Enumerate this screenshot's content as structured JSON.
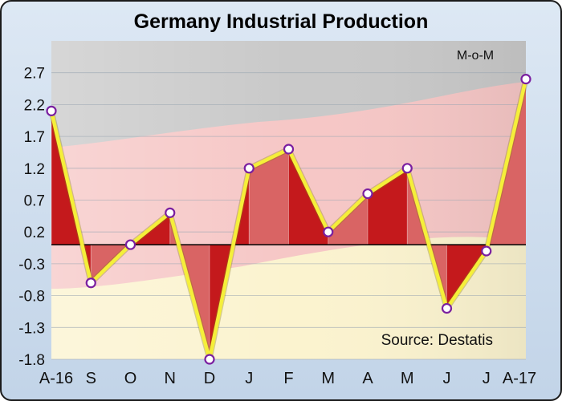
{
  "chart_data": {
    "type": "area",
    "title": "Germany Industrial Production",
    "subtitle": "M-o-M",
    "source": "Source: Destatis",
    "categories": [
      "A-16",
      "S",
      "O",
      "N",
      "D",
      "J",
      "F",
      "M",
      "A",
      "M",
      "J",
      "J",
      "A-17"
    ],
    "values": [
      2.1,
      -0.6,
      0.0,
      0.5,
      -1.8,
      1.2,
      1.5,
      0.2,
      0.8,
      1.2,
      -1.0,
      -0.1,
      2.6
    ],
    "yticks": [
      2.7,
      2.2,
      1.7,
      1.2,
      0.7,
      0.2,
      -0.3,
      -0.8,
      -1.3,
      -1.8
    ],
    "ylim": [
      -1.8,
      3.2
    ],
    "grid": true,
    "legend": "none",
    "colors": {
      "line": "#f5ef3a",
      "fill_dark": "#c4191c",
      "fill_light": "#d96464",
      "marker_fill": "#ffffff",
      "marker_stroke": "#7a1fa0",
      "zero_line": "#000000"
    }
  }
}
